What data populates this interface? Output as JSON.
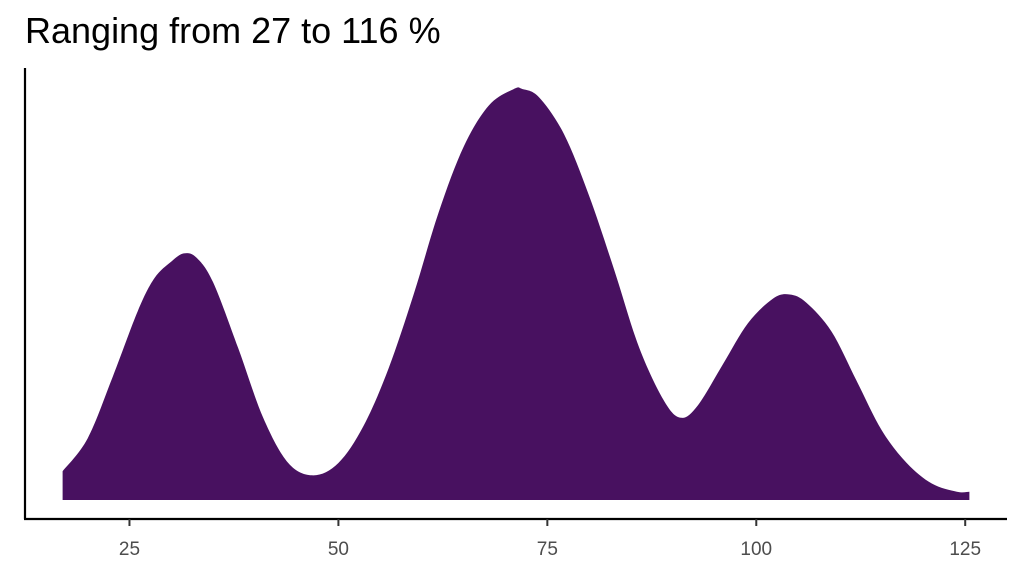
{
  "chart_data": {
    "type": "area",
    "title": "Ranging from 27 to 116 %",
    "xlabel": "",
    "ylabel": "",
    "xlim": [
      12.5,
      130
    ],
    "ylim": [
      0,
      1
    ],
    "x_ticks": [
      25,
      50,
      75,
      100,
      125
    ],
    "x_tick_labels": [
      "25",
      "50",
      "75",
      "100",
      "125"
    ],
    "grid": false,
    "fill_color": "#481160",
    "series": [
      {
        "x": [
          17,
          20,
          23,
          26,
          28,
          30,
          31.5,
          33,
          35,
          38,
          41,
          44,
          47,
          50,
          53,
          56,
          59,
          62,
          65,
          68,
          71,
          72,
          74,
          77,
          80,
          83,
          86,
          89,
          91,
          93,
          96,
          99,
          102,
          104,
          106,
          109,
          112,
          115,
          118,
          121,
          124,
          125.5
        ],
        "y": [
          0.07,
          0.15,
          0.3,
          0.46,
          0.54,
          0.58,
          0.6,
          0.59,
          0.53,
          0.37,
          0.2,
          0.09,
          0.06,
          0.09,
          0.18,
          0.32,
          0.5,
          0.7,
          0.86,
          0.96,
          1.0,
          1.0,
          0.98,
          0.89,
          0.74,
          0.56,
          0.37,
          0.24,
          0.2,
          0.23,
          0.33,
          0.43,
          0.49,
          0.5,
          0.48,
          0.41,
          0.29,
          0.17,
          0.09,
          0.04,
          0.02,
          0.02
        ]
      }
    ]
  }
}
